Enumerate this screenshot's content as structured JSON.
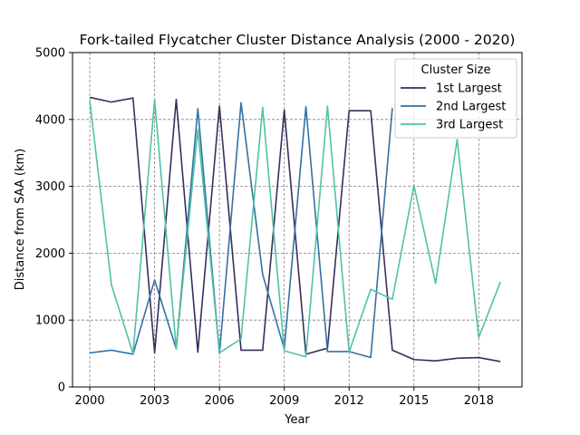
{
  "chart_data": {
    "type": "line",
    "title": "Fork-tailed Flycatcher Cluster Distance Analysis (2000 - 2020)",
    "xlabel": "Year",
    "ylabel": "Distance from SAA (km)",
    "xlim": [
      1999.2,
      2020.0
    ],
    "ylim": [
      0,
      5000
    ],
    "xticks": [
      2000,
      2003,
      2006,
      2009,
      2012,
      2015,
      2018
    ],
    "yticks": [
      0,
      1000,
      2000,
      3000,
      4000,
      5000
    ],
    "grid": true,
    "legend": {
      "title": "Cluster Size",
      "placement": "top-right"
    },
    "x": [
      2000,
      2001,
      2002,
      2003,
      2004,
      2005,
      2006,
      2007,
      2008,
      2009,
      2010,
      2011,
      2012,
      2013,
      2014,
      2015,
      2016,
      2017,
      2018,
      2019
    ],
    "series": [
      {
        "name": "1st Largest",
        "color": "#352f5b",
        "values": [
          4330,
          4260,
          4320,
          510,
          4300,
          520,
          4200,
          550,
          550,
          4140,
          490,
          580,
          4130,
          4130,
          550,
          410,
          390,
          430,
          440,
          380
        ]
      },
      {
        "name": "2nd Largest",
        "color": "#3371a3",
        "values": [
          510,
          550,
          490,
          1600,
          570,
          4160,
          500,
          4250,
          1680,
          570,
          4190,
          530,
          530,
          440,
          4170,
          null,
          null,
          null,
          null,
          null
        ]
      },
      {
        "name": "3rd Largest",
        "color": "#4ec2a6",
        "values": [
          4280,
          1530,
          500,
          4290,
          570,
          3850,
          510,
          720,
          4180,
          540,
          450,
          4200,
          520,
          1460,
          1310,
          3010,
          1550,
          3700,
          740,
          1570
        ]
      }
    ]
  }
}
